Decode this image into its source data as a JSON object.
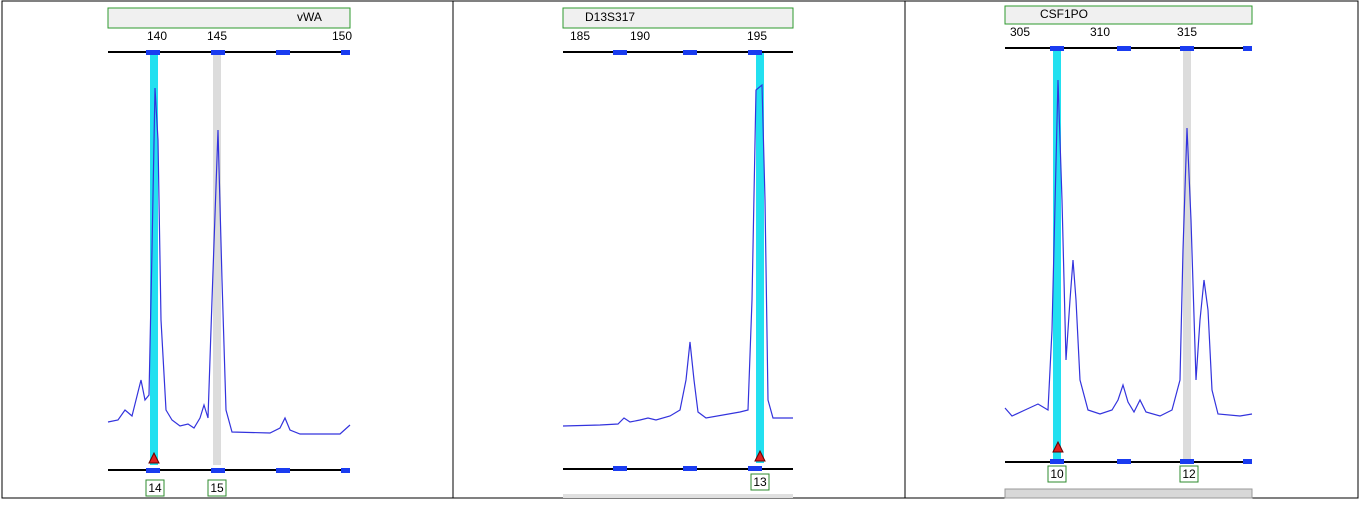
{
  "panels": [
    {
      "locus": "vWA",
      "ticks": [
        "140",
        "145",
        "150"
      ],
      "alleles": [
        "14",
        "15"
      ]
    },
    {
      "locus": "D13S317",
      "ticks": [
        "185",
        "190",
        "195"
      ],
      "alleles": [
        "13"
      ]
    },
    {
      "locus": "CSF1PO",
      "ticks": [
        "305",
        "310",
        "315"
      ],
      "alleles": [
        "10",
        "12"
      ]
    }
  ]
}
